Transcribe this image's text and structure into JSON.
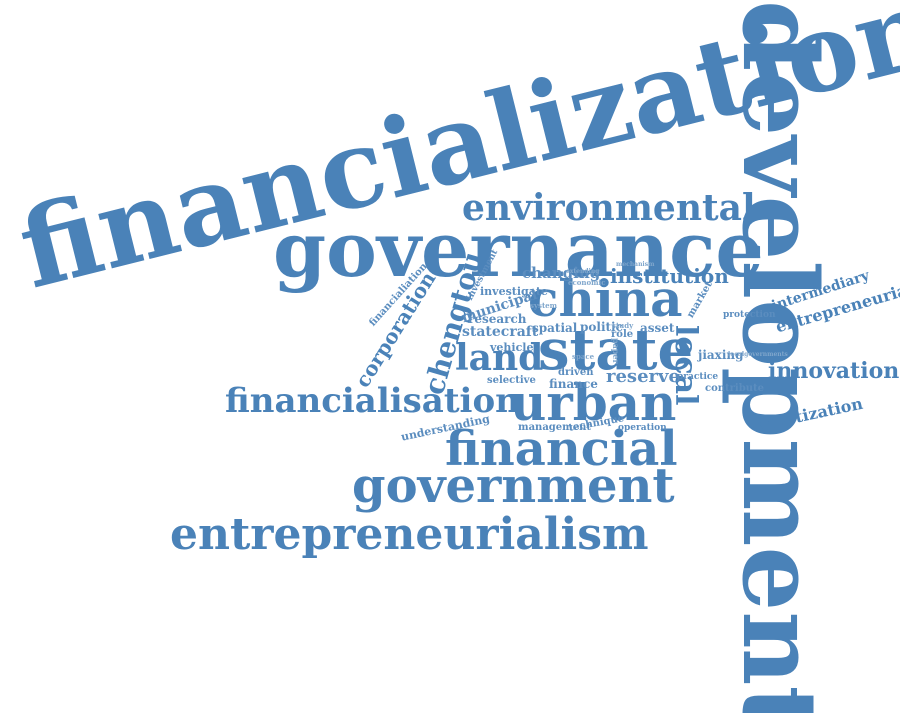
{
  "color": "#4a82b8",
  "words": {
    "financialization": "financialization",
    "development": "development",
    "governance": "governance",
    "environmental": "environmental",
    "china": "china",
    "state": "state",
    "land": "land",
    "urban": "urban",
    "local": "local",
    "chengtou": "chengtou",
    "corporation": "corporation",
    "financialisation": "financialisation",
    "financial": "financial",
    "government": "government",
    "entrepreneurialism": "entrepreneurialism",
    "innovation": "innovation",
    "entrepreneurial": "entrepreneurial",
    "intermediary": "intermediary",
    "assetization": "assetization",
    "institution": "institution",
    "changing": "changing",
    "investigate": "investigate",
    "municipal": "municipal",
    "research": "research",
    "statecraft": "statecraft",
    "spatial": "spatial",
    "politic": "politic",
    "role": "role",
    "asset": "asset",
    "vehicle": "vehicle",
    "reserve": "reserve",
    "selective": "selective",
    "driven": "driven",
    "finance": "finance",
    "management": "management",
    "technique": "technique",
    "operation": "operation",
    "understanding": "understanding",
    "jiaxing": "jiaxing",
    "contribute": "contribute",
    "protection": "protection",
    "market": "market",
    "practice": "practice",
    "investment": "investment",
    "financialiation": "financialiation",
    "economic": "economic",
    "extending": "extending",
    "mechanism": "mechanism",
    "system": "system",
    "paper": "paper",
    "localgovernments": "localgovernments",
    "space": "space",
    "study": "study"
  }
}
